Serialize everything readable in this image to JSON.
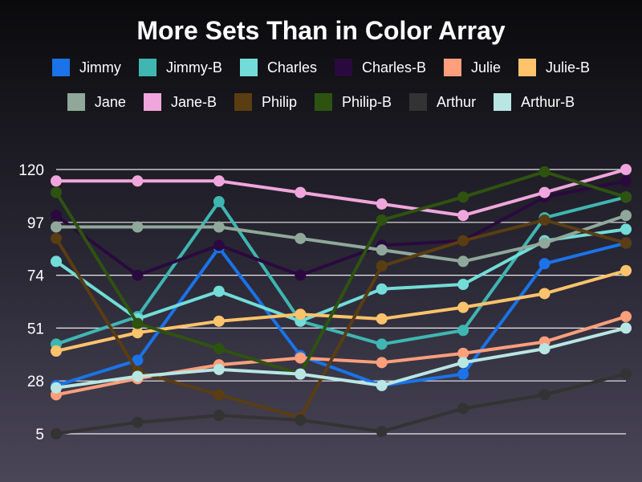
{
  "chart_data": {
    "type": "line",
    "title": "More Sets Than in Color Array",
    "xlabel": "",
    "ylabel": "",
    "ylim": [
      5,
      120
    ],
    "yticks": [
      "120",
      "97",
      "74",
      "51",
      "28",
      "5"
    ],
    "x": [
      0,
      1,
      2,
      3,
      4,
      5,
      6,
      7
    ],
    "grid": true,
    "legend_position": "top",
    "series": [
      {
        "name": "Jimmy",
        "color": "#1a73e8",
        "values": [
          26,
          37,
          86,
          39,
          26,
          31,
          79,
          88
        ]
      },
      {
        "name": "Jimmy-B",
        "color": "#3fb6b2",
        "values": [
          44,
          56,
          106,
          54,
          44,
          50,
          99,
          108
        ]
      },
      {
        "name": "Charles",
        "color": "#73dcd8",
        "values": [
          80,
          55,
          67,
          54,
          68,
          70,
          89,
          94
        ]
      },
      {
        "name": "Charles-B",
        "color": "#2a0a3e",
        "values": [
          100,
          74,
          87,
          74,
          87,
          89,
          108,
          115
        ]
      },
      {
        "name": "Julie",
        "color": "#ff9f7c",
        "values": [
          22,
          29,
          35,
          38,
          36,
          40,
          45,
          56
        ]
      },
      {
        "name": "Julie-B",
        "color": "#ffc36b",
        "values": [
          41,
          49,
          54,
          57,
          55,
          60,
          66,
          76
        ]
      },
      {
        "name": "Jane",
        "color": "#8fa89a",
        "values": [
          95,
          95,
          95,
          90,
          85,
          80,
          88,
          100
        ]
      },
      {
        "name": "Jane-B",
        "color": "#f0a6dc",
        "values": [
          115,
          115,
          115,
          110,
          105,
          100,
          110,
          120
        ]
      },
      {
        "name": "Philip",
        "color": "#5a3d12",
        "values": [
          90,
          32,
          22,
          12,
          78,
          89,
          98,
          88
        ]
      },
      {
        "name": "Philip-B",
        "color": "#2e5310",
        "values": [
          110,
          53,
          42,
          31,
          98,
          108,
          119,
          108
        ]
      },
      {
        "name": "Arthur",
        "color": "#333333",
        "values": [
          5,
          10,
          13,
          11,
          6,
          16,
          22,
          31
        ]
      },
      {
        "name": "Arthur-B",
        "color": "#b8e6e3",
        "values": [
          25,
          30,
          33,
          31,
          26,
          36,
          42,
          51
        ]
      }
    ]
  }
}
